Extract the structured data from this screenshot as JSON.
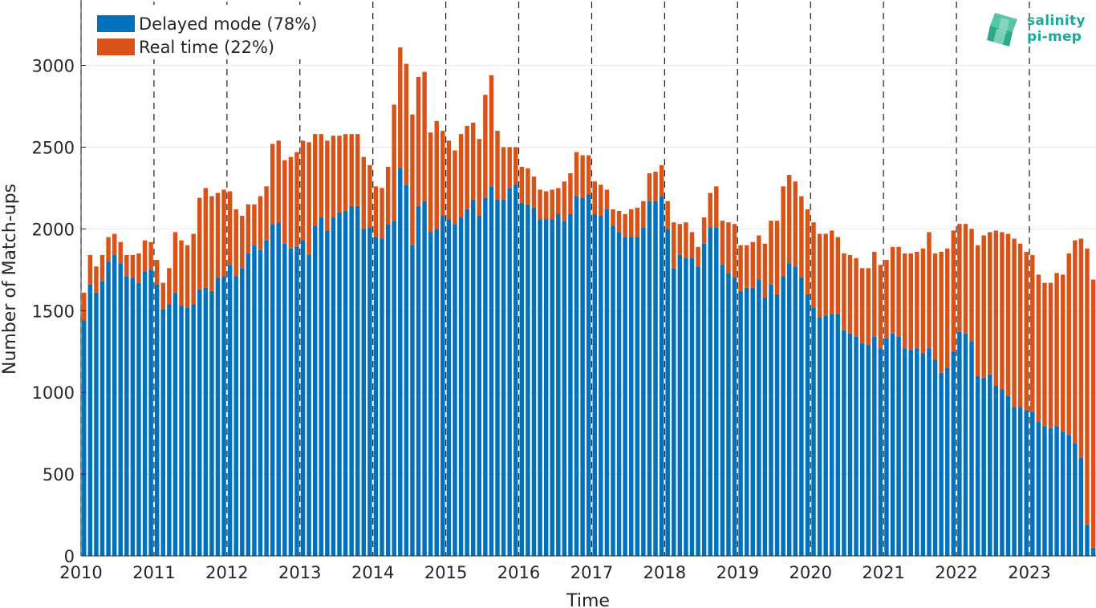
{
  "logo": {
    "line1": "salinity",
    "line2": "pi-mep",
    "color": "#1aa89a"
  },
  "chart_data": {
    "type": "bar",
    "stacked": true,
    "title": "",
    "xlabel": "Time",
    "ylabel": "Number of Match-ups",
    "ylim": [
      0,
      3400
    ],
    "yticks": [
      0,
      500,
      1000,
      1500,
      2000,
      2500,
      3000
    ],
    "xticks": [
      "2010",
      "2011",
      "2012",
      "2013",
      "2014",
      "2015",
      "2016",
      "2017",
      "2018",
      "2019",
      "2020",
      "2021",
      "2022",
      "2023"
    ],
    "grid": "horizontal",
    "year_separators": "dashed",
    "legend_position": "top-left",
    "start": "2010-01",
    "series": [
      {
        "name": "Delayed mode (78%)",
        "color": "#0072bd",
        "values": [
          1440,
          1660,
          1610,
          1680,
          1800,
          1840,
          1790,
          1710,
          1700,
          1670,
          1740,
          1750,
          1660,
          1510,
          1540,
          1610,
          1530,
          1520,
          1540,
          1630,
          1640,
          1620,
          1700,
          1710,
          1780,
          1710,
          1760,
          1850,
          1900,
          1870,
          1930,
          2030,
          2040,
          1910,
          1880,
          1890,
          1930,
          1840,
          2020,
          2070,
          1990,
          2070,
          2100,
          2110,
          2140,
          2140,
          2000,
          2010,
          1950,
          1940,
          2030,
          2050,
          2370,
          2270,
          1900,
          2140,
          2170,
          1980,
          2000,
          2080,
          2060,
          2030,
          2070,
          2120,
          2180,
          2080,
          2190,
          2260,
          2180,
          2180,
          2250,
          2270,
          2160,
          2150,
          2130,
          2060,
          2060,
          2060,
          2090,
          2050,
          2090,
          2200,
          2190,
          2210,
          2090,
          2080,
          2120,
          2020,
          1980,
          1950,
          1950,
          1950,
          2010,
          2170,
          2170,
          2200,
          2000,
          1760,
          1840,
          1820,
          1820,
          1770,
          1910,
          2010,
          2010,
          1780,
          1730,
          1700,
          1620,
          1640,
          1640,
          1690,
          1580,
          1660,
          1600,
          1710,
          1790,
          1770,
          1700,
          1600,
          1520,
          1460,
          1470,
          1480,
          1480,
          1380,
          1360,
          1340,
          1300,
          1290,
          1340,
          1270,
          1330,
          1360,
          1340,
          1270,
          1260,
          1270,
          1240,
          1270,
          1200,
          1120,
          1150,
          1250,
          1370,
          1360,
          1310,
          1100,
          1090,
          1110,
          1040,
          1020,
          980,
          910,
          910,
          890,
          880,
          820,
          790,
          780,
          790,
          760,
          740,
          690,
          600,
          190,
          50
        ]
      },
      {
        "name": "Real time (22%)",
        "color": "#d95319",
        "values": [
          170,
          180,
          160,
          160,
          150,
          130,
          130,
          130,
          140,
          180,
          190,
          170,
          150,
          160,
          220,
          370,
          400,
          380,
          430,
          560,
          610,
          580,
          520,
          530,
          450,
          410,
          320,
          300,
          250,
          330,
          330,
          490,
          500,
          510,
          560,
          580,
          610,
          690,
          560,
          510,
          550,
          500,
          470,
          470,
          440,
          440,
          440,
          380,
          310,
          310,
          350,
          710,
          740,
          740,
          800,
          790,
          790,
          610,
          660,
          520,
          480,
          450,
          510,
          510,
          470,
          470,
          630,
          680,
          420,
          320,
          250,
          230,
          220,
          220,
          190,
          180,
          170,
          180,
          160,
          240,
          250,
          270,
          260,
          240,
          200,
          190,
          120,
          100,
          130,
          140,
          170,
          180,
          160,
          170,
          180,
          190,
          170,
          280,
          190,
          220,
          160,
          120,
          160,
          210,
          250,
          270,
          310,
          330,
          280,
          260,
          280,
          270,
          330,
          390,
          450,
          550,
          540,
          520,
          500,
          520,
          520,
          510,
          500,
          510,
          470,
          470,
          480,
          480,
          460,
          470,
          520,
          510,
          480,
          530,
          550,
          580,
          590,
          590,
          640,
          710,
          650,
          740,
          730,
          740,
          660,
          670,
          690,
          800,
          870,
          870,
          950,
          960,
          990,
          1030,
          1000,
          970,
          960,
          900,
          880,
          890,
          940,
          960,
          1110,
          1240,
          1340,
          1690,
          1640
        ]
      }
    ]
  }
}
